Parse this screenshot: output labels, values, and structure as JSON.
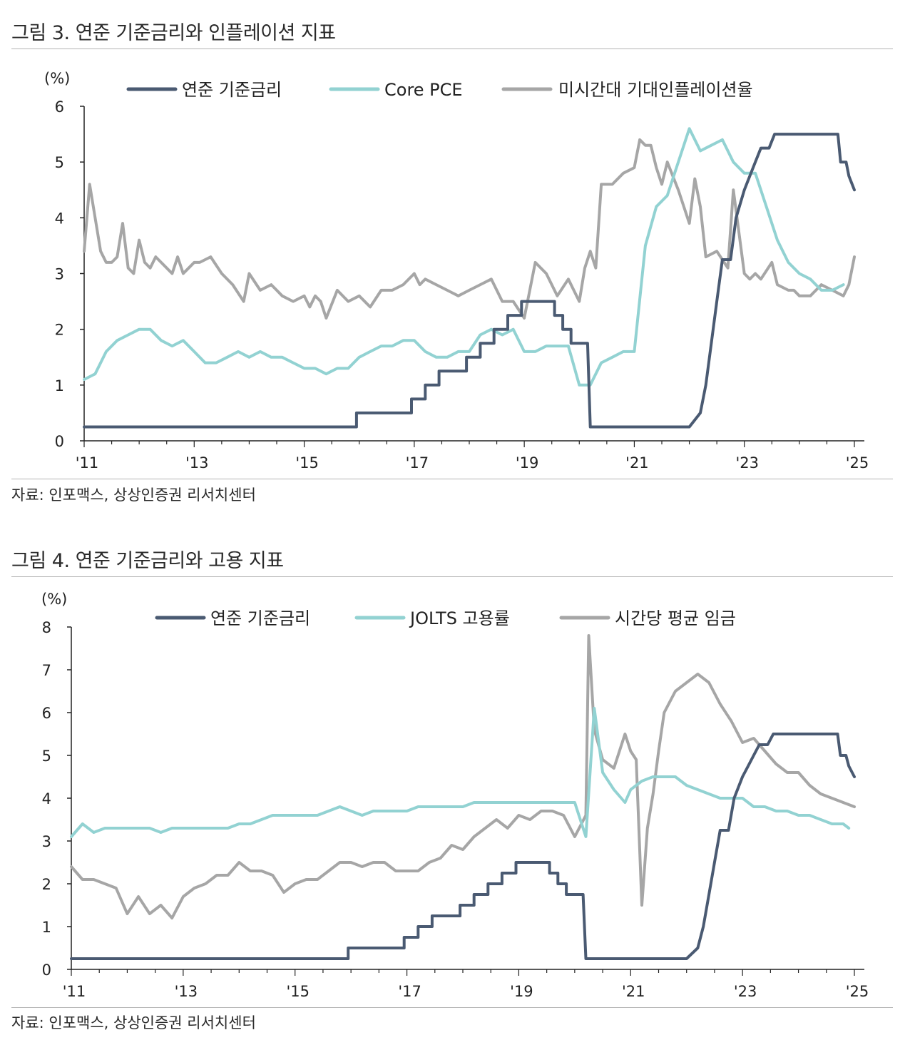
{
  "figures": [
    {
      "title": "그림 3. 연준 기준금리와 인플레이션 지표",
      "source": "자료: 인포맥스, 상상인증권 리서치센터"
    },
    {
      "title": "그림 4. 연준 기준금리와 고용 지표",
      "source": "자료: 인포맥스, 상상인증권 리서치센터"
    }
  ],
  "chart_data": [
    {
      "type": "line",
      "title": "그림 3. 연준 기준금리와 인플레이션 지표",
      "ylabel": "(%)",
      "ylim": [
        0,
        6
      ],
      "yticks": [
        0,
        1,
        2,
        3,
        4,
        5,
        6
      ],
      "xlim": [
        2011.0,
        2025.0
      ],
      "xticks": [
        2011,
        2013,
        2015,
        2017,
        2019,
        2021,
        2023,
        2025
      ],
      "xtick_labels": [
        "'11",
        "'13",
        "'15",
        "'17",
        "'19",
        "'21",
        "'23",
        "'25"
      ],
      "legend": "top",
      "series": [
        {
          "name": "미시간대 기대인플레이션율",
          "color": "#a6a6a6",
          "x": [
            2011.0,
            2011.1,
            2011.2,
            2011.3,
            2011.4,
            2011.5,
            2011.6,
            2011.7,
            2011.8,
            2011.9,
            2012.0,
            2012.1,
            2012.2,
            2012.3,
            2012.4,
            2012.5,
            2012.6,
            2012.7,
            2012.8,
            2012.9,
            2013.0,
            2013.1,
            2013.3,
            2013.5,
            2013.7,
            2013.9,
            2014.0,
            2014.2,
            2014.4,
            2014.5,
            2014.6,
            2014.8,
            2015.0,
            2015.1,
            2015.2,
            2015.3,
            2015.4,
            2015.6,
            2015.8,
            2016.0,
            2016.2,
            2016.4,
            2016.6,
            2016.8,
            2017.0,
            2017.1,
            2017.2,
            2017.4,
            2017.6,
            2017.8,
            2018.0,
            2018.2,
            2018.4,
            2018.6,
            2018.8,
            2019.0,
            2019.2,
            2019.4,
            2019.6,
            2019.8,
            2020.0,
            2020.1,
            2020.2,
            2020.3,
            2020.4,
            2020.6,
            2020.8,
            2021.0,
            2021.1,
            2021.2,
            2021.3,
            2021.4,
            2021.5,
            2021.6,
            2021.8,
            2022.0,
            2022.1,
            2022.2,
            2022.3,
            2022.5,
            2022.7,
            2022.8,
            2023.0,
            2023.1,
            2023.2,
            2023.3,
            2023.5,
            2023.6,
            2023.8,
            2023.9,
            2024.0,
            2024.2,
            2024.4,
            2024.6,
            2024.8,
            2024.9,
            2025.0
          ],
          "y": [
            3.4,
            4.6,
            4.0,
            3.4,
            3.2,
            3.2,
            3.3,
            3.9,
            3.1,
            3.0,
            3.6,
            3.2,
            3.1,
            3.3,
            3.2,
            3.1,
            3.0,
            3.3,
            3.0,
            3.1,
            3.2,
            3.2,
            3.3,
            3.0,
            2.8,
            2.5,
            3.0,
            2.7,
            2.8,
            2.7,
            2.6,
            2.5,
            2.6,
            2.4,
            2.6,
            2.5,
            2.2,
            2.7,
            2.5,
            2.6,
            2.4,
            2.7,
            2.7,
            2.8,
            3.0,
            2.8,
            2.9,
            2.8,
            2.7,
            2.6,
            2.7,
            2.8,
            2.9,
            2.5,
            2.5,
            2.2,
            3.2,
            3.0,
            2.6,
            2.9,
            2.5,
            3.1,
            3.4,
            3.1,
            4.6,
            4.6,
            4.8,
            4.9,
            5.4,
            5.3,
            5.3,
            4.9,
            4.6,
            5.0,
            4.5,
            3.9,
            4.7,
            4.2,
            3.3,
            3.4,
            3.1,
            4.5,
            3.0,
            2.9,
            3.0,
            2.9,
            3.2,
            2.8,
            2.7,
            2.7,
            2.6,
            2.6,
            2.8,
            2.7,
            2.6,
            2.8,
            3.3
          ]
        },
        {
          "name": "Core PCE",
          "color": "#92d2d2",
          "x": [
            2011.0,
            2011.2,
            2011.4,
            2011.6,
            2011.8,
            2012.0,
            2012.2,
            2012.4,
            2012.6,
            2012.8,
            2013.0,
            2013.2,
            2013.4,
            2013.6,
            2013.8,
            2014.0,
            2014.2,
            2014.4,
            2014.6,
            2014.8,
            2015.0,
            2015.2,
            2015.4,
            2015.6,
            2015.8,
            2016.0,
            2016.2,
            2016.4,
            2016.6,
            2016.8,
            2017.0,
            2017.2,
            2017.4,
            2017.6,
            2017.8,
            2018.0,
            2018.2,
            2018.4,
            2018.6,
            2018.8,
            2019.0,
            2019.2,
            2019.4,
            2019.6,
            2019.8,
            2020.0,
            2020.2,
            2020.4,
            2020.6,
            2020.8,
            2021.0,
            2021.2,
            2021.4,
            2021.6,
            2021.8,
            2022.0,
            2022.2,
            2022.4,
            2022.6,
            2022.8,
            2023.0,
            2023.2,
            2023.4,
            2023.6,
            2023.8,
            2024.0,
            2024.2,
            2024.4,
            2024.6,
            2024.8
          ],
          "y": [
            1.1,
            1.2,
            1.6,
            1.8,
            1.9,
            2.0,
            2.0,
            1.8,
            1.7,
            1.8,
            1.6,
            1.4,
            1.4,
            1.5,
            1.6,
            1.5,
            1.6,
            1.5,
            1.5,
            1.4,
            1.3,
            1.3,
            1.2,
            1.3,
            1.3,
            1.5,
            1.6,
            1.7,
            1.7,
            1.8,
            1.8,
            1.6,
            1.5,
            1.5,
            1.6,
            1.6,
            1.9,
            2.0,
            1.9,
            2.0,
            1.6,
            1.6,
            1.7,
            1.7,
            1.7,
            1.0,
            1.0,
            1.4,
            1.5,
            1.6,
            1.6,
            3.5,
            4.2,
            4.4,
            5.0,
            5.6,
            5.2,
            5.3,
            5.4,
            5.0,
            4.8,
            4.8,
            4.2,
            3.6,
            3.2,
            3.0,
            2.9,
            2.7,
            2.7,
            2.8
          ]
        },
        {
          "name": "연준 기준금리",
          "color": "#4a5a72",
          "x": [
            2011.0,
            2015.95,
            2015.95,
            2016.95,
            2016.95,
            2017.2,
            2017.2,
            2017.45,
            2017.45,
            2017.95,
            2017.95,
            2018.2,
            2018.2,
            2018.45,
            2018.45,
            2018.7,
            2018.7,
            2018.95,
            2018.95,
            2019.55,
            2019.55,
            2019.7,
            2019.7,
            2019.85,
            2019.85,
            2020.15,
            2020.2,
            2022.0,
            2022.2,
            2022.3,
            2022.4,
            2022.5,
            2022.6,
            2022.75,
            2022.85,
            2023.0,
            2023.1,
            2023.2,
            2023.3,
            2023.45,
            2023.55,
            2024.7,
            2024.75,
            2024.85,
            2024.9,
            2025.0
          ],
          "y": [
            0.25,
            0.25,
            0.5,
            0.5,
            0.75,
            0.75,
            1.0,
            1.0,
            1.25,
            1.25,
            1.5,
            1.5,
            1.75,
            1.75,
            2.0,
            2.0,
            2.25,
            2.25,
            2.5,
            2.5,
            2.25,
            2.25,
            2.0,
            2.0,
            1.75,
            1.75,
            0.25,
            0.25,
            0.5,
            1.0,
            1.75,
            2.5,
            3.25,
            3.25,
            4.0,
            4.5,
            4.75,
            5.0,
            5.25,
            5.25,
            5.5,
            5.5,
            5.0,
            5.0,
            4.75,
            4.5
          ]
        }
      ]
    },
    {
      "type": "line",
      "title": "그림 4. 연준 기준금리와 고용 지표",
      "ylabel": "(%)",
      "ylim": [
        0,
        8
      ],
      "yticks": [
        0,
        1,
        2,
        3,
        4,
        5,
        6,
        7,
        8
      ],
      "xlim": [
        2011.0,
        2025.0
      ],
      "xticks": [
        2011,
        2013,
        2015,
        2017,
        2019,
        2021,
        2023,
        2025
      ],
      "xtick_labels": [
        "'11",
        "'13",
        "'15",
        "'17",
        "'19",
        "'21",
        "'23",
        "'25"
      ],
      "legend": "top",
      "series": [
        {
          "name": "시간당 평균 임금",
          "color": "#a6a6a6",
          "x": [
            2011.0,
            2011.2,
            2011.4,
            2011.6,
            2011.8,
            2012.0,
            2012.2,
            2012.4,
            2012.6,
            2012.8,
            2013.0,
            2013.2,
            2013.4,
            2013.6,
            2013.8,
            2014.0,
            2014.2,
            2014.4,
            2014.6,
            2014.8,
            2015.0,
            2015.2,
            2015.4,
            2015.6,
            2015.8,
            2016.0,
            2016.2,
            2016.4,
            2016.6,
            2016.8,
            2017.0,
            2017.2,
            2017.4,
            2017.6,
            2017.8,
            2018.0,
            2018.2,
            2018.4,
            2018.6,
            2018.8,
            2019.0,
            2019.2,
            2019.4,
            2019.6,
            2019.8,
            2020.0,
            2020.2,
            2020.25,
            2020.35,
            2020.5,
            2020.7,
            2020.9,
            2021.0,
            2021.1,
            2021.2,
            2021.3,
            2021.4,
            2021.5,
            2021.6,
            2021.8,
            2022.0,
            2022.2,
            2022.4,
            2022.6,
            2022.8,
            2023.0,
            2023.2,
            2023.4,
            2023.6,
            2023.8,
            2024.0,
            2024.2,
            2024.4,
            2024.6,
            2024.8,
            2025.0
          ],
          "y": [
            2.4,
            2.1,
            2.1,
            2.0,
            1.9,
            1.3,
            1.7,
            1.3,
            1.5,
            1.2,
            1.7,
            1.9,
            2.0,
            2.2,
            2.2,
            2.5,
            2.3,
            2.3,
            2.2,
            1.8,
            2.0,
            2.1,
            2.1,
            2.3,
            2.5,
            2.5,
            2.4,
            2.5,
            2.5,
            2.3,
            2.3,
            2.3,
            2.5,
            2.6,
            2.9,
            2.8,
            3.1,
            3.3,
            3.5,
            3.3,
            3.6,
            3.5,
            3.7,
            3.7,
            3.6,
            3.1,
            3.6,
            7.8,
            5.6,
            4.9,
            4.7,
            5.5,
            5.1,
            4.9,
            1.5,
            3.3,
            4.1,
            5.1,
            6.0,
            6.5,
            6.7,
            6.9,
            6.7,
            6.2,
            5.8,
            5.3,
            5.4,
            5.1,
            4.8,
            4.6,
            4.6,
            4.3,
            4.1,
            4.0,
            3.9,
            3.8
          ]
        },
        {
          "name": "JOLTS 고용률",
          "color": "#92d2d2",
          "x": [
            2011.0,
            2011.2,
            2011.4,
            2011.6,
            2011.8,
            2012.0,
            2012.2,
            2012.4,
            2012.6,
            2012.8,
            2013.0,
            2013.2,
            2013.4,
            2013.6,
            2013.8,
            2014.0,
            2014.2,
            2014.4,
            2014.6,
            2014.8,
            2015.0,
            2015.2,
            2015.4,
            2015.6,
            2015.8,
            2016.0,
            2016.2,
            2016.4,
            2016.6,
            2016.8,
            2017.0,
            2017.2,
            2017.4,
            2017.6,
            2017.8,
            2018.0,
            2018.2,
            2018.4,
            2018.6,
            2018.8,
            2019.0,
            2019.2,
            2019.4,
            2019.6,
            2019.8,
            2020.0,
            2020.2,
            2020.35,
            2020.5,
            2020.7,
            2020.9,
            2021.0,
            2021.2,
            2021.4,
            2021.6,
            2021.8,
            2022.0,
            2022.2,
            2022.4,
            2022.6,
            2022.8,
            2023.0,
            2023.2,
            2023.4,
            2023.6,
            2023.8,
            2024.0,
            2024.2,
            2024.4,
            2024.6,
            2024.8,
            2024.9
          ],
          "y": [
            3.1,
            3.4,
            3.2,
            3.3,
            3.3,
            3.3,
            3.3,
            3.3,
            3.2,
            3.3,
            3.3,
            3.3,
            3.3,
            3.3,
            3.3,
            3.4,
            3.4,
            3.5,
            3.6,
            3.6,
            3.6,
            3.6,
            3.6,
            3.7,
            3.8,
            3.7,
            3.6,
            3.7,
            3.7,
            3.7,
            3.7,
            3.8,
            3.8,
            3.8,
            3.8,
            3.8,
            3.9,
            3.9,
            3.9,
            3.9,
            3.9,
            3.9,
            3.9,
            3.9,
            3.9,
            3.9,
            3.1,
            6.1,
            4.6,
            4.2,
            3.9,
            4.2,
            4.4,
            4.5,
            4.5,
            4.5,
            4.3,
            4.2,
            4.1,
            4.0,
            4.0,
            4.0,
            3.8,
            3.8,
            3.7,
            3.7,
            3.6,
            3.6,
            3.5,
            3.4,
            3.4,
            3.3
          ]
        },
        {
          "name": "연준 기준금리",
          "color": "#4a5a72",
          "x": [
            2011.0,
            2015.95,
            2015.95,
            2016.95,
            2016.95,
            2017.2,
            2017.2,
            2017.45,
            2017.45,
            2017.95,
            2017.95,
            2018.2,
            2018.2,
            2018.45,
            2018.45,
            2018.7,
            2018.7,
            2018.95,
            2018.95,
            2019.55,
            2019.55,
            2019.7,
            2019.7,
            2019.85,
            2019.85,
            2020.15,
            2020.2,
            2022.0,
            2022.2,
            2022.3,
            2022.4,
            2022.5,
            2022.6,
            2022.75,
            2022.85,
            2023.0,
            2023.1,
            2023.2,
            2023.3,
            2023.45,
            2023.55,
            2024.7,
            2024.75,
            2024.85,
            2024.9,
            2025.0
          ],
          "y": [
            0.25,
            0.25,
            0.5,
            0.5,
            0.75,
            0.75,
            1.0,
            1.0,
            1.25,
            1.25,
            1.5,
            1.5,
            1.75,
            1.75,
            2.0,
            2.0,
            2.25,
            2.25,
            2.5,
            2.5,
            2.25,
            2.25,
            2.0,
            2.0,
            1.75,
            1.75,
            0.25,
            0.25,
            0.5,
            1.0,
            1.75,
            2.5,
            3.25,
            3.25,
            4.0,
            4.5,
            4.75,
            5.0,
            5.25,
            5.25,
            5.5,
            5.5,
            5.0,
            5.0,
            4.75,
            4.5
          ]
        }
      ],
      "legend_order": [
        "연준 기준금리",
        "JOLTS 고용률",
        "시간당 평균 임금"
      ]
    }
  ]
}
